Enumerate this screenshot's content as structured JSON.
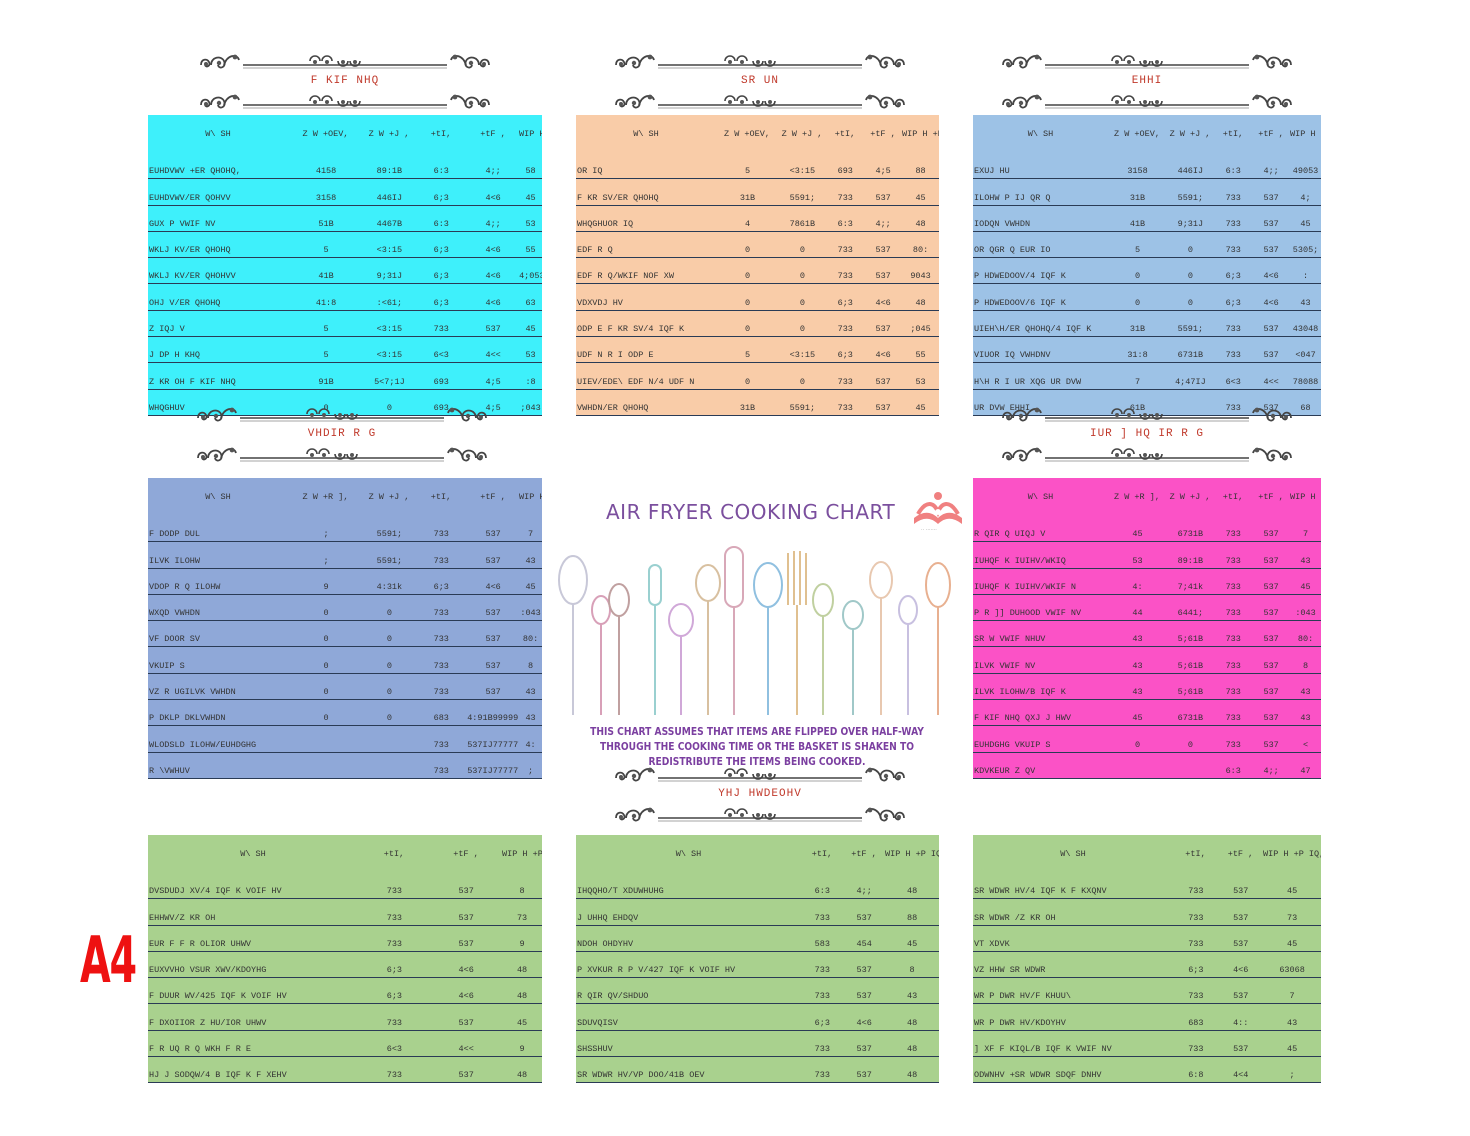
{
  "page": {
    "title": "AIR FRYER COOKING CHART",
    "note": "THIS CHART ASSUMES THAT ITEMS ARE FLIPPED OVER HALF-WAY THROUGH THE COOKING TIME OR THE BASKET IS SHAKEN TO REDISTRIBUTE THE ITEMS BEING COOKED.",
    "paper_size": "A4",
    "logo_caption": "·· ·······",
    "colors": {
      "title": "#7b4f9e",
      "section_title": "#c0392b",
      "a4": "#ee1111"
    }
  },
  "sections": {
    "chicken": {
      "title": "F KIF NHQ",
      "color": "#3ef0fb",
      "headers": [
        "W\\ SH",
        "Z W +OEV,",
        "Z W +J ,",
        "+tI,",
        "+tF ,",
        "WIP H +P IQ,"
      ],
      "rows": [
        [
          "EUHDVWV +ER QHOHQ,",
          "4158",
          "89:1B",
          "6:3",
          "4;;",
          "58"
        ],
        [
          "EUHDVWV/ER QOHVV",
          "3158",
          "446IJ",
          "6;3",
          "4<6",
          "45"
        ],
        [
          "GUX P VWIF NV",
          "51B",
          "4467B",
          "6:3",
          "4;;",
          "53"
        ],
        [
          "WKLJ KV/ER QHOHQ",
          "5",
          "<3:15",
          "6;3",
          "4<6",
          "55"
        ],
        [
          "WKLJ KV/ER QHOHVV",
          "41B",
          "9;31J",
          "6;3",
          "4<6",
          "4;053"
        ],
        [
          "OHJ V/ER QHOHQ",
          "41:8",
          ":<61;",
          "6;3",
          "4<6",
          "63"
        ],
        [
          "Z IQJ V",
          "5",
          "<3:15",
          "733",
          "537",
          "45"
        ],
        [
          "J DP H KHQ",
          "5",
          "<3:15",
          "6<3",
          "4<<",
          "53"
        ],
        [
          "Z KR OH F KIF NHQ",
          "91B",
          "5<7;1J",
          "693",
          "4;5",
          ":8"
        ],
        [
          "WHQGHUV",
          "0",
          "0",
          "693",
          "4;5",
          ";043"
        ]
      ]
    },
    "pork": {
      "title": "SR UN",
      "color": "#f9cca8",
      "headers": [
        "W\\ SH",
        "Z W +OEV,",
        "Z W +J ,",
        "+tI,",
        "+tF ,",
        "WIP H +P IQ,"
      ],
      "rows": [
        [
          "OR IQ",
          "5",
          "<3:15",
          "693",
          "4;5",
          "88"
        ],
        [
          "F KR SV/ER QHOHQ",
          "31B",
          "5591;",
          "733",
          "537",
          "45"
        ],
        [
          "WHQGHUOR IQ",
          "4",
          "7861B",
          "6:3",
          "4;;",
          "48"
        ],
        [
          "EDF R Q",
          "0",
          "0",
          "733",
          "537",
          "80:"
        ],
        [
          "EDF R Q/WKIF NOF XW",
          "0",
          "0",
          "733",
          "537",
          "9043"
        ],
        [
          "VDXVDJ HV",
          "0",
          "0",
          "6;3",
          "4<6",
          "48"
        ],
        [
          "ODP E F KR SV/4 IQF K",
          "0",
          "0",
          "733",
          "537",
          ";045"
        ],
        [
          "UDF N R I ODP E",
          "5",
          "<3:15",
          "6;3",
          "4<6",
          "55"
        ],
        [
          "UIEV/EDE\\ EDF N/4 UDF N",
          "0",
          "0",
          "733",
          "537",
          "53"
        ],
        [
          "VWHDN/ER QHOHQ",
          "31B",
          "5591;",
          "733",
          "537",
          "45"
        ]
      ]
    },
    "beef": {
      "title": "EHHI",
      "color": "#9dc2e6",
      "headers": [
        "W\\ SH",
        "Z W +OEV,",
        "Z W +J ,",
        "+tI,",
        "+tF ,",
        "WIP H +P IQ,"
      ],
      "rows": [
        [
          "EXUJ HU",
          "3158",
          "446IJ",
          "6:3",
          "4;;",
          "49053"
        ],
        [
          "ILOHW P IJ QR Q",
          "31B",
          "5591;",
          "733",
          "537",
          "4;"
        ],
        [
          "IODQN VWHDN",
          "41B",
          "9;31J",
          "733",
          "537",
          "45"
        ],
        [
          "OR QGR Q EUR IO",
          "5",
          "0",
          "733",
          "537",
          "5305;"
        ],
        [
          "P HDWEDOOV/4 IQF K",
          "0",
          "0",
          "6;3",
          "4<6",
          ":"
        ],
        [
          "P HDWEDOOV/6 IQF K",
          "0",
          "0",
          "6;3",
          "4<6",
          "43"
        ],
        [
          "UIEH\\H/ER QHOHQ/4 IQF K",
          "31B",
          "5591;",
          "733",
          "537",
          "43048"
        ],
        [
          "VIUOR IQ VWHDNV",
          "31:8",
          "6731B",
          "733",
          "537",
          "<047"
        ],
        [
          "H\\H R I UR XQG UR DVW",
          "7",
          "4;47IJ",
          "6<3",
          "4<<",
          "78088"
        ],
        [
          "UR DVW EHHI",
          "61B",
          "",
          "733",
          "537",
          "68"
        ]
      ]
    },
    "seafood": {
      "title": "VHDIR R G",
      "color": "#8fa8d8",
      "headers": [
        "W\\ SH",
        "Z W +R ],",
        "Z W +J ,",
        "+tI,",
        "+tF ,",
        "WIP H +P IQ,"
      ],
      "rows": [
        [
          "F DODP DUL",
          ";",
          "5591;",
          "733",
          "537",
          "7"
        ],
        [
          "ILVK ILOHW",
          ";",
          "5591;",
          "733",
          "537",
          "43"
        ],
        [
          "VDOP R Q ILOHW",
          "9",
          "4:31k",
          "6;3",
          "4<6",
          "45"
        ],
        [
          "WXQD VWHDN",
          "0",
          "0",
          "733",
          "537",
          ":043"
        ],
        [
          "VF DOOR SV",
          "0",
          "0",
          "733",
          "537",
          "80:"
        ],
        [
          "VKUIP S",
          "0",
          "0",
          "733",
          "537",
          "8"
        ],
        [
          "VZ R UGILVK VWHDN",
          "0",
          "0",
          "733",
          "537",
          "43"
        ],
        [
          "P DKLP DKLVWHDN",
          "0",
          "0",
          "683",
          "4:91B99999:",
          "43"
        ],
        [
          "WLODSLD ILOHW/EUHDGHG",
          "",
          "",
          "733",
          "537IJ777777",
          "4:"
        ],
        [
          "R \\VWHUV",
          "",
          "",
          "733",
          "537IJ777777",
          ";"
        ]
      ]
    },
    "frozen_food": {
      "title": "IUR ] HQ IR R G",
      "color": "#fb52c6",
      "headers": [
        "W\\ SH",
        "Z W +R ],",
        "Z W +J ,",
        "+tI,",
        "+tF ,",
        "WIP H +P IQ,"
      ],
      "rows": [
        [
          "R QIR Q UIQJ V",
          "45",
          "6731B",
          "733",
          "537",
          "7"
        ],
        [
          "IUHQF K IUIHV/WKIQ",
          "53",
          "89:1B",
          "733",
          "537",
          "43"
        ],
        [
          "IUHQF K IUIHV/WKIF N",
          "4:",
          "7;41k",
          "733",
          "537",
          "45"
        ],
        [
          "P R ]] DUHOOD VWIF NV",
          "44",
          "6441;",
          "733",
          "537",
          ":043"
        ],
        [
          "SR W VWIF NHUV",
          "43",
          "5;61B",
          "733",
          "537",
          "80:"
        ],
        [
          "ILVK VWIF NV",
          "43",
          "5;61B",
          "733",
          "537",
          "8"
        ],
        [
          "ILVK ILOHW/B IQF K",
          "43",
          "5;61B",
          "733",
          "537",
          "43"
        ],
        [
          "F KIF NHQ QXJ J HWV",
          "45",
          "6731B",
          "733",
          "537",
          "43"
        ],
        [
          "EUHDGHG VKUIP S",
          "0",
          "0",
          "733",
          "537",
          "<"
        ],
        [
          "KDVKEUR Z QV",
          "",
          "",
          "6:3",
          "4;;",
          "47"
        ]
      ]
    },
    "vegetables_1": {
      "title": "",
      "color": "#a9d18e",
      "headers": [
        "W\\ SH",
        "+tI,",
        "+tF ,",
        "WIP H +P IQ,"
      ],
      "rows": [
        [
          "DVSDUDJ XV/4 IQF K VOIF HV",
          "733",
          "537",
          "8"
        ],
        [
          "EHHWV/Z KR OH",
          "733",
          "537",
          "73"
        ],
        [
          "EUR F F R OLIOR UHWV",
          "733",
          "537",
          "9"
        ],
        [
          "EUXVVHO VSUR XWV/KDOYHG",
          "6;3",
          "4<6",
          "48"
        ],
        [
          "F DUUR WV/425 IQF K VOIF HV",
          "6;3",
          "4<6",
          "48"
        ],
        [
          "F DXOIIOR Z HU/IOR UHWV",
          "733",
          "537",
          "45"
        ],
        [
          "F R UQ R Q WKH F R E",
          "6<3",
          "4<<",
          "9"
        ],
        [
          "HJ J SODQW/4 B IQF K F XEHV",
          "733",
          "537",
          "48"
        ]
      ]
    },
    "vegetables": {
      "title": "YHJ HWDEOHV",
      "color": "#a9d18e",
      "headers": [
        "W\\ SH",
        "+tI,",
        "+tF ,",
        "WIP H +P IQ,"
      ],
      "rows": [
        [
          "IHQQHO/T XDUWHUHG",
          "6:3",
          "4;;",
          "48"
        ],
        [
          "J UHHQ EHDQV",
          "733",
          "537",
          "88"
        ],
        [
          "NDOH OHDYHV",
          "583",
          "454",
          "45"
        ],
        [
          "P XVKUR R P V/427 IQF K VOIF HV",
          "733",
          "537",
          "8"
        ],
        [
          "R QIR QV/SHDUO",
          "733",
          "537",
          "43"
        ],
        [
          "SDUVQISV",
          "6;3",
          "4<6",
          "48"
        ],
        [
          "SHSSHUV",
          "733",
          "537",
          "48"
        ],
        [
          "SR WDWR HV/VP DOO/41B OEV",
          "733",
          "537",
          "48"
        ]
      ]
    },
    "vegetables_3": {
      "title": "",
      "color": "#a9d18e",
      "headers": [
        "W\\ SH",
        "+tI,",
        "+tF ,",
        "WIP H +P IQ,"
      ],
      "rows": [
        [
          "SR WDWR HV/4 IQF K F KXQNV",
          "733",
          "537",
          "45"
        ],
        [
          "SR WDWR /Z KR OH",
          "733",
          "537",
          "73"
        ],
        [
          "VT XDVK",
          "733",
          "537",
          "45"
        ],
        [
          "VZ HHW SR WDWR",
          "6;3",
          "4<6",
          "63068"
        ],
        [
          "WR P DWR HV/F KHUU\\",
          "733",
          "537",
          "7"
        ],
        [
          "WR P DWR HV/KDOYHV",
          "683",
          "4::",
          "43"
        ],
        [
          "] XF F KIQL/B IQF K VWIF NV",
          "733",
          "537",
          "45"
        ],
        [
          "ODWNHV +SR WDWR  SDQF DNHV",
          "6:8",
          "4<4",
          ";"
        ]
      ]
    }
  }
}
